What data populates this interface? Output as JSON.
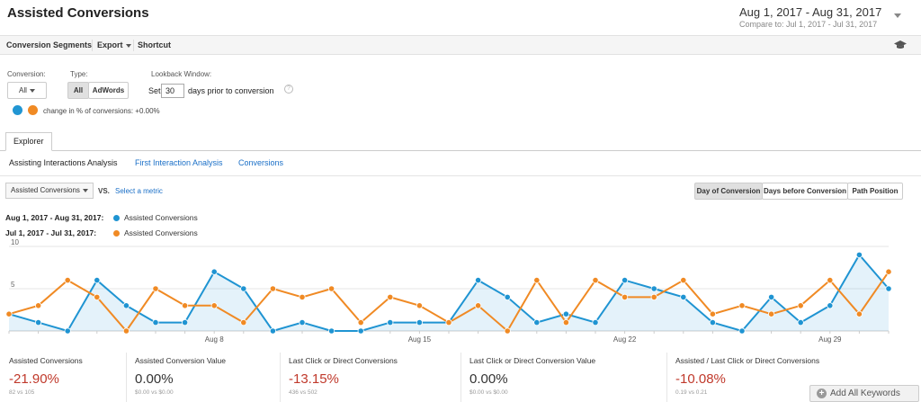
{
  "page": {
    "title": "Assisted Conversions",
    "date_range": "Aug 1, 2017 - Aug 31, 2017",
    "compare_prefix": "Compare to:",
    "compare_range": "Jul 1, 2017 - Jul 31, 2017"
  },
  "toolbar": {
    "conversion_segments": "Conversion Segments",
    "export": "Export",
    "shortcut": "Shortcut"
  },
  "filters": {
    "conversion_label": "Conversion:",
    "conversion_value": "All",
    "type_label": "Type:",
    "type_all": "All",
    "type_adwords": "AdWords",
    "lookback_label": "Lookback Window:",
    "set_label": "Set",
    "days_value": "30",
    "days_suffix": "days prior to conversion",
    "help": "?",
    "change_text": "change in % of conversions: +0.00%",
    "pie_colors": [
      "#2196d3",
      "#f08a24"
    ]
  },
  "tabs": {
    "explorer": "Explorer"
  },
  "subtabs": [
    {
      "label": "Assisting Interactions Analysis",
      "active": true
    },
    {
      "label": "First Interaction Analysis",
      "active": false
    },
    {
      "label": "Conversions",
      "active": false
    }
  ],
  "metric_selector": {
    "selected": "Assisted Conversions",
    "vs": "VS.",
    "select_metric": "Select a metric"
  },
  "view_buttons": {
    "day_of_conversion": "Day of Conversion",
    "days_before": "Days before Conversion",
    "path_position": "Path Position"
  },
  "legend": [
    {
      "date": "Aug 1, 2017 - Aug 31, 2017:",
      "name": "Assisted Conversions",
      "color": "#1f94d2"
    },
    {
      "date": "Jul 1, 2017 - Jul 31, 2017:",
      "name": "Assisted Conversions",
      "color": "#f08a24"
    }
  ],
  "chart_data": {
    "type": "line",
    "x": [
      1,
      2,
      3,
      4,
      5,
      6,
      7,
      8,
      9,
      10,
      11,
      12,
      13,
      14,
      15,
      16,
      17,
      18,
      19,
      20,
      21,
      22,
      23,
      24,
      25,
      26,
      27,
      28,
      29,
      30,
      31
    ],
    "x_tick_labels": [
      {
        "x": 8,
        "label": "Aug 8"
      },
      {
        "x": 15,
        "label": "Aug 15"
      },
      {
        "x": 22,
        "label": "Aug 22"
      },
      {
        "x": 29,
        "label": "Aug 29"
      }
    ],
    "y_ticks": [
      5,
      10
    ],
    "ylim": [
      0,
      10
    ],
    "series": [
      {
        "name": "Assisted Conversions",
        "color": "#1f94d2",
        "area": true,
        "values": [
          2,
          1,
          0,
          6,
          3,
          1,
          1,
          7,
          5,
          0,
          1,
          0,
          0,
          1,
          1,
          1,
          6,
          4,
          1,
          2,
          1,
          6,
          5,
          4,
          1,
          0,
          4,
          1,
          3,
          9,
          5
        ]
      },
      {
        "name": "Assisted Conversions",
        "color": "#f08a24",
        "area": false,
        "values": [
          2,
          3,
          6,
          4,
          0,
          5,
          3,
          3,
          1,
          5,
          4,
          5,
          1,
          4,
          3,
          1,
          3,
          0,
          6,
          1,
          6,
          4,
          4,
          6,
          2,
          3,
          2,
          3,
          6,
          2,
          7
        ]
      }
    ]
  },
  "metrics": [
    {
      "title": "Assisted Conversions",
      "value": "-21.90%",
      "sub": "82 vs 105",
      "tone": "neg"
    },
    {
      "title": "Assisted Conversion Value",
      "value": "0.00%",
      "sub": "$0.00 vs $0.00",
      "tone": "pos"
    },
    {
      "title": "Last Click or Direct Conversions",
      "value": "-13.15%",
      "sub": "436 vs 502",
      "tone": "neg"
    },
    {
      "title": "Last Click or Direct Conversion Value",
      "value": "0.00%",
      "sub": "$0.00 vs $0.00",
      "tone": "pos"
    },
    {
      "title": "Assisted / Last Click or Direct Conversions",
      "value": "-10.08%",
      "sub": "0.19 vs 0.21",
      "tone": "neg"
    }
  ],
  "add_keywords": "Add All Keywords"
}
